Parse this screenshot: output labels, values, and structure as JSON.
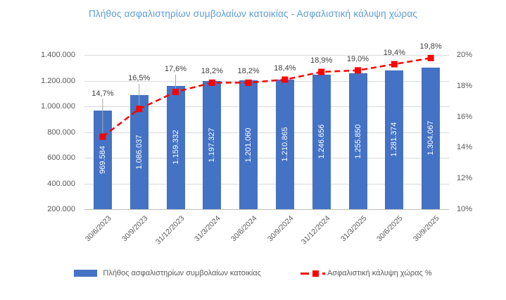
{
  "title": "Πλήθος ασφαλιστηρίων συμβολαίων κατοικίας - Ασφαλιστική κάλυψη χώρας",
  "chart_data": {
    "type": "combo",
    "title": "Πλήθος ασφαλιστηρίων συμβολαίων κατοικίας - Ασφαλιστική κάλυψη χώρας",
    "categories": [
      "30/6/2023",
      "30/9/2023",
      "31/12/2023",
      "31/3/2024",
      "30/6/2024",
      "30/9/2024",
      "31/12/2024",
      "31/3/2025",
      "30/6/2025",
      "30/9/2025"
    ],
    "series": [
      {
        "name": "Πλήθος ασφαλιστηρίων συμβολαίων κατοικίας",
        "type": "bar",
        "axis": "left",
        "color": "#4472C4",
        "values": [
          969584,
          1086037,
          1159332,
          1197327,
          1201060,
          1210865,
          1246656,
          1255850,
          1281374,
          1304067
        ],
        "data_labels": [
          "969.584",
          "1.086.037",
          "1.159.332",
          "1.197.327",
          "1.201.060",
          "1.210.865",
          "1.246.656",
          "1.255.850",
          "1.281.374",
          "1.304.067"
        ]
      },
      {
        "name": "Ασφαλιστική κάλυψη χώρας %",
        "type": "line",
        "line_style": "dashed",
        "marker": "square",
        "axis": "right",
        "color": "#FF0000",
        "values": [
          14.7,
          16.5,
          17.6,
          18.2,
          18.2,
          18.4,
          18.9,
          19.0,
          19.4,
          19.8
        ],
        "data_labels": [
          "14,7%",
          "16,5%",
          "17,6%",
          "18,2%",
          "18,2%",
          "18,4%",
          "18,9%",
          "19,0%",
          "19,4%",
          "19,8%"
        ]
      }
    ],
    "left_axis": {
      "min": 200000,
      "max": 1400000,
      "step": 200000,
      "tick_values": [
        1400000,
        1200000,
        1000000,
        800000,
        600000,
        400000,
        200000
      ],
      "tick_labels": [
        "1.400.000",
        "1.200.000",
        "1.000.000",
        "800.000",
        "600.000",
        "400.000",
        "200.000"
      ]
    },
    "right_axis": {
      "min": 10,
      "max": 20,
      "step": 2,
      "tick_values": [
        20,
        18,
        16,
        14,
        12,
        10
      ],
      "tick_labels": [
        "20%",
        "18%",
        "16%",
        "14%",
        "12%",
        "10%"
      ]
    },
    "grid": true,
    "legend_position": "bottom",
    "colors": {
      "bar": "#4472C4",
      "line": "#FF0000",
      "gridline": "#D9D9D9",
      "axis_line": "#BFBFBF",
      "title": "#5B9BD5",
      "axis_text": "#595959",
      "data_label_text": "#404040",
      "bar_label_text": "#FFFFFF",
      "leader_line": "#A6A6A6"
    }
  },
  "legend": {
    "items": [
      {
        "label": "Πλήθος ασφαλιστηρίων συμβολαίων κατοικίας",
        "swatch": "bar",
        "color": "#4472C4"
      },
      {
        "label": "Ασφαλιστική κάλυψη χώρας %",
        "swatch": "dashed-line-square-marker",
        "color": "#FF0000"
      }
    ]
  }
}
